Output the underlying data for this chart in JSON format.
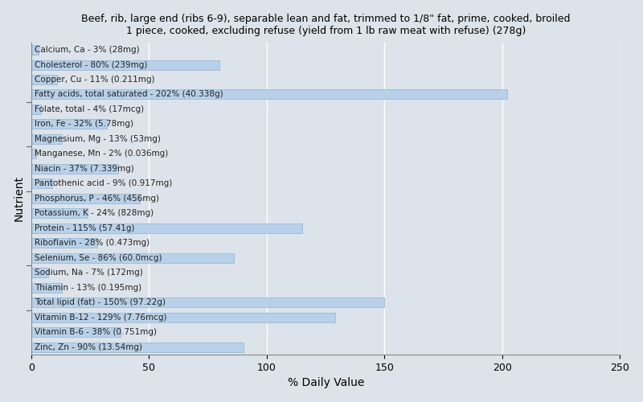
{
  "title": "Beef, rib, large end (ribs 6-9), separable lean and fat, trimmed to 1/8\" fat, prime, cooked, broiled\n1 piece, cooked, excluding refuse (yield from 1 lb raw meat with refuse) (278g)",
  "xlabel": "% Daily Value",
  "ylabel": "Nutrient",
  "xlim": [
    0,
    250
  ],
  "xticks": [
    0,
    50,
    100,
    150,
    200,
    250
  ],
  "background_color": "#dde3ea",
  "plot_bg_color": "#dde3ea",
  "bar_color": "#b8d0e8",
  "bar_edge_color": "#8ab4d4",
  "nutrients": [
    "Calcium, Ca - 3% (28mg)",
    "Cholesterol - 80% (239mg)",
    "Copper, Cu - 11% (0.211mg)",
    "Fatty acids, total saturated - 202% (40.338g)",
    "Folate, total - 4% (17mcg)",
    "Iron, Fe - 32% (5.78mg)",
    "Magnesium, Mg - 13% (53mg)",
    "Manganese, Mn - 2% (0.036mg)",
    "Niacin - 37% (7.339mg)",
    "Pantothenic acid - 9% (0.917mg)",
    "Phosphorus, P - 46% (456mg)",
    "Potassium, K - 24% (828mg)",
    "Protein - 115% (57.41g)",
    "Riboflavin - 28% (0.473mg)",
    "Selenium, Se - 86% (60.0mcg)",
    "Sodium, Na - 7% (172mg)",
    "Thiamin - 13% (0.195mg)",
    "Total lipid (fat) - 150% (97.22g)",
    "Vitamin B-12 - 129% (7.76mcg)",
    "Vitamin B-6 - 38% (0.751mg)",
    "Zinc, Zn - 90% (13.54mg)"
  ],
  "values": [
    3,
    80,
    11,
    202,
    4,
    32,
    13,
    2,
    37,
    9,
    46,
    24,
    115,
    28,
    86,
    7,
    13,
    150,
    129,
    38,
    90
  ],
  "title_fontsize": 9.0,
  "label_fontsize": 7.5,
  "xlabel_fontsize": 10,
  "ylabel_fontsize": 10
}
